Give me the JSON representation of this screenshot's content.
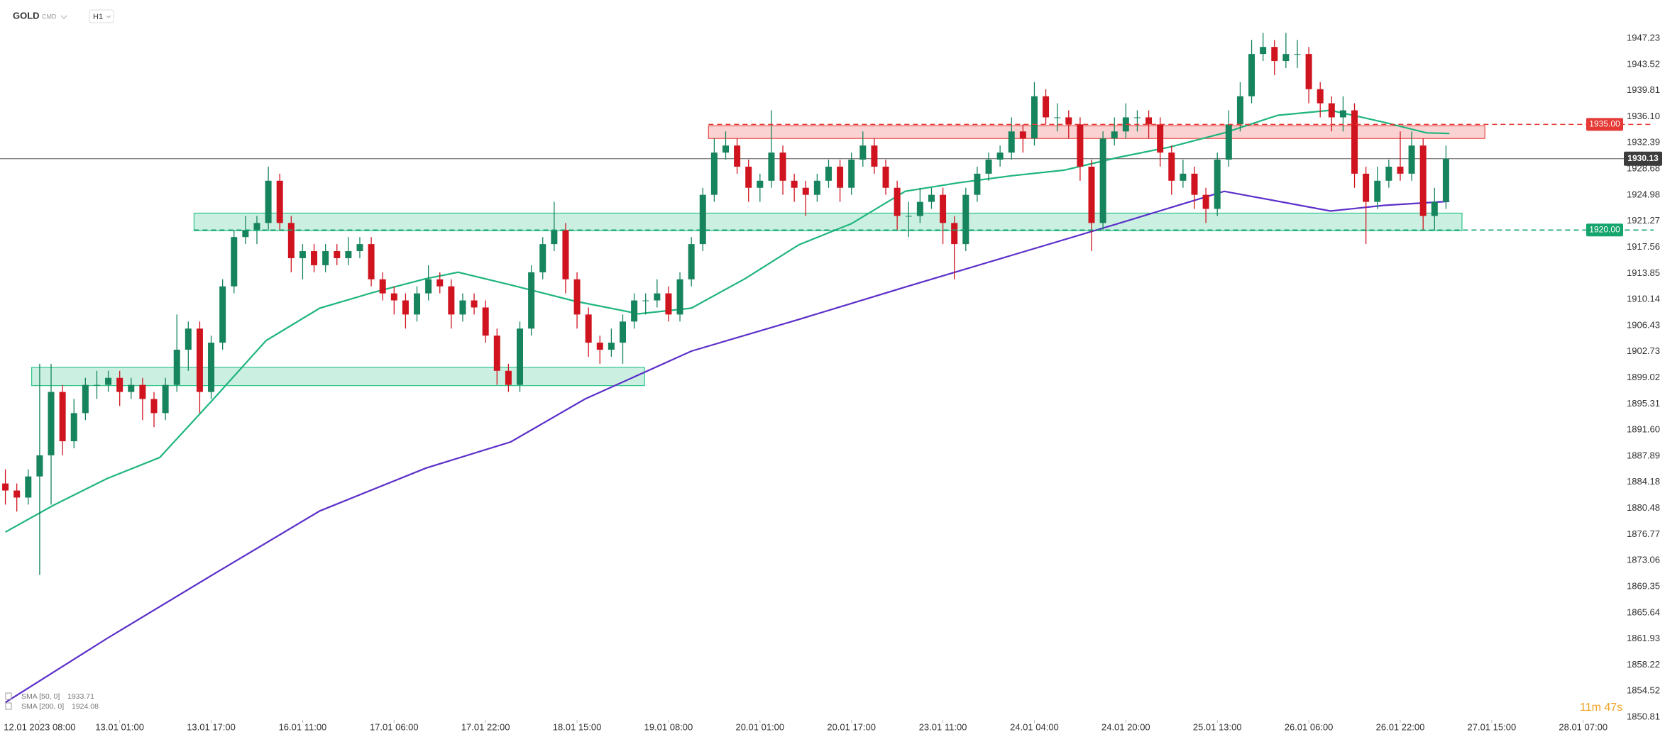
{
  "chart_data": {
    "type": "candlestick",
    "symbol": "GOLD",
    "market": "CMD",
    "timeframe": "H1",
    "candle_colors": {
      "up": "#16845c",
      "down": "#d0141f"
    },
    "xlim": [
      -0.47,
      142.3
    ],
    "xticks": [
      {
        "value": 3,
        "label": "12.01 2023  08:00"
      },
      {
        "value": 10,
        "label": "13.01  01:00"
      },
      {
        "value": 18,
        "label": "13.01  17:00"
      },
      {
        "value": 26,
        "label": "16.01  11:00"
      },
      {
        "value": 34,
        "label": "17.01  06:00"
      },
      {
        "value": 42,
        "label": "17.01  22:00"
      },
      {
        "value": 50,
        "label": "18.01  15:00"
      },
      {
        "value": 58,
        "label": "19.01  08:00"
      },
      {
        "value": 66,
        "label": "20.01  01:00"
      },
      {
        "value": 74,
        "label": "20.01  17:00"
      },
      {
        "value": 82,
        "label": "23.01  11:00"
      },
      {
        "value": 90,
        "label": "24.01  04:00"
      },
      {
        "value": 98,
        "label": "24.01  20:00"
      },
      {
        "value": 106,
        "label": "25.01  13:00"
      },
      {
        "value": 114,
        "label": "26.01  06:00"
      },
      {
        "value": 122,
        "label": "26.01  22:00"
      },
      {
        "value": 130,
        "label": "27.01  15:00"
      },
      {
        "value": 138,
        "label": "28.01  07:00"
      }
    ],
    "ylim": [
      1850.41,
      1952.67
    ],
    "yticks": [
      1947.23,
      1943.52,
      1939.81,
      {
        "value": 1936.1,
        "label": "1936.10"
      },
      1932.39,
      1928.68,
      1924.98,
      1921.27,
      1917.56,
      1913.85,
      1910.14,
      1906.43,
      1902.73,
      1899.02,
      1895.31,
      {
        "value": 1891.6,
        "label": "1891.60"
      },
      1887.89,
      1884.18,
      1880.48,
      1876.77,
      1873.06,
      1869.35,
      1865.64,
      1861.93,
      1858.22,
      1854.52,
      1850.81
    ],
    "candles": [
      [
        1884,
        1886,
        1881,
        1883
      ],
      [
        1883,
        1884,
        1880,
        1882
      ],
      [
        1882,
        1886,
        1881,
        1885
      ],
      [
        1885,
        1901,
        1871,
        1888
      ],
      [
        1888,
        1901,
        1881,
        1897
      ],
      [
        1897,
        1898,
        1888,
        1890
      ],
      [
        1890,
        1896,
        1889,
        1894
      ],
      [
        1894,
        1899,
        1893,
        1898
      ],
      [
        1898,
        1900,
        1896,
        1898
      ],
      [
        1898,
        1900,
        1897,
        1899
      ],
      [
        1899,
        1900,
        1895,
        1897
      ],
      [
        1897,
        1899,
        1896,
        1898
      ],
      [
        1898,
        1899,
        1893,
        1896
      ],
      [
        1896,
        1897,
        1892,
        1894
      ],
      [
        1894,
        1899,
        1893,
        1898
      ],
      [
        1898,
        1908,
        1897,
        1903
      ],
      [
        1903,
        1907,
        1900,
        1906
      ],
      [
        1906,
        1907,
        1894,
        1897
      ],
      [
        1897,
        1905,
        1896,
        1904
      ],
      [
        1904,
        1913,
        1903,
        1912
      ],
      [
        1912,
        1920,
        1911,
        1919
      ],
      [
        1919,
        1922,
        1918,
        1920
      ],
      [
        1920,
        1922,
        1918,
        1921
      ],
      [
        1921,
        1929,
        1920,
        1927
      ],
      [
        1927,
        1928,
        1920,
        1921
      ],
      [
        1921,
        1922,
        1914,
        1916
      ],
      [
        1916,
        1918,
        1913,
        1917
      ],
      [
        1917,
        1918,
        1914,
        1915
      ],
      [
        1915,
        1918,
        1914,
        1917
      ],
      [
        1917,
        1918,
        1915,
        1916
      ],
      [
        1916,
        1919,
        1915,
        1917
      ],
      [
        1917,
        1919,
        1916,
        1918
      ],
      [
        1918,
        1919,
        1912,
        1913
      ],
      [
        1913,
        1914,
        1910,
        1911
      ],
      [
        1911,
        1912,
        1908,
        1910
      ],
      [
        1910,
        1911,
        1906,
        1908
      ],
      [
        1908,
        1912,
        1907,
        1911
      ],
      [
        1911,
        1915,
        1910,
        1913
      ],
      [
        1913,
        1914,
        1911,
        1912
      ],
      [
        1912,
        1913,
        1906,
        1908
      ],
      [
        1908,
        1911,
        1907,
        1910
      ],
      [
        1910,
        1911,
        1908,
        1909
      ],
      [
        1909,
        1910,
        1904,
        1905
      ],
      [
        1905,
        1906,
        1898,
        1900
      ],
      [
        1900,
        1901,
        1897,
        1898
      ],
      [
        1898,
        1907,
        1897,
        1906
      ],
      [
        1906,
        1915,
        1905,
        1914
      ],
      [
        1914,
        1919,
        1913,
        1918
      ],
      [
        1918,
        1924,
        1917,
        1920
      ],
      [
        1920,
        1921,
        1911,
        1913
      ],
      [
        1913,
        1914,
        1906,
        1908
      ],
      [
        1908,
        1909,
        1902,
        1904
      ],
      [
        1904,
        1905,
        1901,
        1903
      ],
      [
        1903,
        1906,
        1902,
        1904
      ],
      [
        1904,
        1908,
        1901,
        1907
      ],
      [
        1907,
        1911,
        1906,
        1910
      ],
      [
        1910,
        1911,
        1908,
        1910
      ],
      [
        1910,
        1913,
        1909,
        1911
      ],
      [
        1911,
        1912,
        1907,
        1908
      ],
      [
        1908,
        1914,
        1907,
        1913
      ],
      [
        1913,
        1919,
        1912,
        1918
      ],
      [
        1918,
        1926,
        1917,
        1925
      ],
      [
        1925,
        1933,
        1924,
        1931
      ],
      [
        1931,
        1934,
        1930,
        1932
      ],
      [
        1932,
        1933,
        1928,
        1929
      ],
      [
        1929,
        1930,
        1924,
        1926
      ],
      [
        1926,
        1928,
        1924,
        1927
      ],
      [
        1927,
        1937,
        1926,
        1931
      ],
      [
        1931,
        1932,
        1925,
        1927
      ],
      [
        1927,
        1928,
        1924,
        1926
      ],
      [
        1926,
        1927,
        1922,
        1925
      ],
      [
        1925,
        1928,
        1924,
        1927
      ],
      [
        1927,
        1930,
        1926,
        1929
      ],
      [
        1929,
        1930,
        1924,
        1926
      ],
      [
        1926,
        1931,
        1925,
        1930
      ],
      [
        1930,
        1934,
        1929,
        1932
      ],
      [
        1932,
        1933,
        1928,
        1929
      ],
      [
        1929,
        1930,
        1925,
        1926
      ],
      [
        1926,
        1927,
        1920,
        1922
      ],
      [
        1922,
        1924,
        1919,
        1922
      ],
      [
        1922,
        1926,
        1921,
        1924
      ],
      [
        1924,
        1926,
        1923,
        1925
      ],
      [
        1925,
        1926,
        1918,
        1921
      ],
      [
        1921,
        1922,
        1913,
        1918
      ],
      [
        1918,
        1926,
        1917,
        1925
      ],
      [
        1925,
        1929,
        1924,
        1928
      ],
      [
        1928,
        1931,
        1927,
        1930
      ],
      [
        1930,
        1932,
        1929,
        1931
      ],
      [
        1931,
        1936,
        1930,
        1934
      ],
      [
        1934,
        1935,
        1931,
        1933
      ],
      [
        1933,
        1941,
        1932,
        1939
      ],
      [
        1939,
        1940,
        1935,
        1936
      ],
      [
        1936,
        1938,
        1934,
        1936
      ],
      [
        1936,
        1937,
        1933,
        1935
      ],
      [
        1935,
        1936,
        1927,
        1929
      ],
      [
        1929,
        1930,
        1917,
        1921
      ],
      [
        1921,
        1934,
        1920,
        1933
      ],
      [
        1933,
        1936,
        1932,
        1934
      ],
      [
        1934,
        1938,
        1933,
        1936
      ],
      [
        1936,
        1937,
        1934,
        1936
      ],
      [
        1936,
        1937,
        1933,
        1935
      ],
      [
        1935,
        1936,
        1929,
        1931
      ],
      [
        1931,
        1932,
        1925,
        1927
      ],
      [
        1927,
        1930,
        1926,
        1928
      ],
      [
        1928,
        1929,
        1923,
        1925
      ],
      [
        1925,
        1926,
        1921,
        1923
      ],
      [
        1923,
        1931,
        1922,
        1930
      ],
      [
        1930,
        1937,
        1929,
        1935
      ],
      [
        1935,
        1941,
        1934,
        1939
      ],
      [
        1939,
        1947,
        1938,
        1945
      ],
      [
        1945,
        1948,
        1944,
        1946
      ],
      [
        1946,
        1947,
        1942,
        1944
      ],
      [
        1944,
        1948,
        1943,
        1945
      ],
      [
        1945,
        1947,
        1943,
        1945
      ],
      [
        1945,
        1946,
        1938,
        1940
      ],
      [
        1940,
        1941,
        1936,
        1938
      ],
      [
        1938,
        1939,
        1934,
        1936
      ],
      [
        1936,
        1939,
        1934,
        1937
      ],
      [
        1937,
        1938,
        1926,
        1928
      ],
      [
        1928,
        1929,
        1918,
        1924
      ],
      [
        1924,
        1929,
        1923,
        1927
      ],
      [
        1927,
        1930,
        1926,
        1929
      ],
      [
        1929,
        1934,
        1927,
        1928
      ],
      [
        1928,
        1934,
        1927,
        1932
      ],
      [
        1932,
        1933,
        1920,
        1922
      ],
      [
        1922,
        1926,
        1920,
        1924
      ],
      [
        1924,
        1932,
        1923,
        1930.13
      ]
    ],
    "series": [
      {
        "name": "SMA [50, 0]",
        "last": 1933.71,
        "color": "#1fb57d",
        "x": [
          0,
          4.2,
          8.9,
          13.5,
          18.2,
          22.8,
          27.5,
          32.1,
          36.8,
          39.6,
          44.2,
          49.8,
          55.4,
          60,
          64.7,
          69.4,
          74,
          78.7,
          83.3,
          88,
          92.6,
          97.3,
          101.9,
          106.6,
          111.3,
          115.9,
          120.6,
          124.3,
          126.3
        ],
        "values": [
          1877.1,
          1880.9,
          1884.7,
          1887.7,
          1896,
          1904.3,
          1908.9,
          1911.1,
          1913.1,
          1914,
          1912.2,
          1909.9,
          1908.1,
          1908.9,
          1913.1,
          1917.9,
          1920.9,
          1925.5,
          1926.7,
          1927.7,
          1928.5,
          1930.3,
          1931.8,
          1933.8,
          1936.3,
          1937,
          1935.3,
          1933.8,
          1933.71
        ]
      },
      {
        "name": "SMA [200, 0]",
        "last": 1924.08,
        "color": "#5b2fc9",
        "x": [
          0,
          8.9,
          18.2,
          27.5,
          36.8,
          44.2,
          50.7,
          60,
          69.4,
          78.7,
          88,
          97.3,
          106.6,
          115.9,
          120.6,
          126.3
        ],
        "values": [
          1852.9,
          1862,
          1871.1,
          1880.1,
          1886.2,
          1889.9,
          1896,
          1902.8,
          1907.3,
          1911.9,
          1916.4,
          1920.9,
          1925.5,
          1922.7,
          1923.5,
          1924.08
        ]
      }
    ],
    "zones": [
      {
        "from": 2.3,
        "to": 55.9,
        "low": 1897.9,
        "high": 1900.5,
        "color": "#2ec48a"
      },
      {
        "from": 16.5,
        "to": 127.4,
        "low": 1919.9,
        "high": 1922.4,
        "color": "#2ec48a"
      },
      {
        "from": 61.5,
        "to": 129.4,
        "low": 1933,
        "high": 1934.8,
        "color": "#ea4a4a"
      }
    ],
    "levels": [
      {
        "price": {
          "value": 1935,
          "label": "1935.00"
        },
        "from": 61.5,
        "color": "#e53935"
      },
      {
        "price": {
          "value": 1920,
          "label": "1920.00"
        },
        "from": 16.5,
        "color": "#14a46c"
      }
    ],
    "last_price": 1930.13,
    "timer": "11m 47s"
  }
}
